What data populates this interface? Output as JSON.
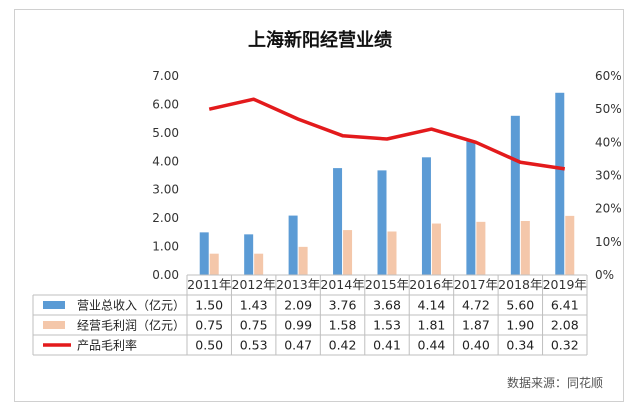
{
  "chart_data": {
    "type": "bar",
    "title": "上海新阳经营业绩",
    "categories": [
      "2011年",
      "2012年",
      "2013年",
      "2014年",
      "2015年",
      "2016年",
      "2017年",
      "2018年",
      "2019年"
    ],
    "series": [
      {
        "name": "营业总收入（亿元）",
        "type": "bar",
        "axis": "left",
        "color": "#5b9bd5",
        "values": [
          1.5,
          1.43,
          2.09,
          3.76,
          3.68,
          4.14,
          4.72,
          5.6,
          6.41
        ],
        "labels": [
          "1.50",
          "1.43",
          "2.09",
          "3.76",
          "3.68",
          "4.14",
          "4.72",
          "5.60",
          "6.41"
        ]
      },
      {
        "name": "经营毛利润（亿元）",
        "type": "bar",
        "axis": "left",
        "color": "#f4c7aa",
        "values": [
          0.75,
          0.75,
          0.99,
          1.58,
          1.53,
          1.81,
          1.87,
          1.9,
          2.08
        ],
        "labels": [
          "0.75",
          "0.75",
          "0.99",
          "1.58",
          "1.53",
          "1.81",
          "1.87",
          "1.90",
          "2.08"
        ]
      },
      {
        "name": "产品毛利率",
        "type": "line",
        "axis": "right",
        "color": "#e31a1c",
        "values": [
          0.5,
          0.53,
          0.47,
          0.42,
          0.41,
          0.44,
          0.4,
          0.34,
          0.32
        ],
        "labels": [
          "0.50",
          "0.53",
          "0.47",
          "0.42",
          "0.41",
          "0.44",
          "0.40",
          "0.34",
          "0.32"
        ]
      }
    ],
    "y_left": {
      "min": 0,
      "max": 7,
      "step": 1,
      "tick_labels": [
        "0.00",
        "1.00",
        "2.00",
        "3.00",
        "4.00",
        "5.00",
        "6.00",
        "7.00"
      ]
    },
    "y_right": {
      "min": 0,
      "max": 0.6,
      "step": 0.1,
      "tick_labels": [
        "0%",
        "10%",
        "20%",
        "30%",
        "40%",
        "50%",
        "60%"
      ]
    },
    "grid": false,
    "legend": "data-table",
    "source": "数据来源：同花顺"
  }
}
